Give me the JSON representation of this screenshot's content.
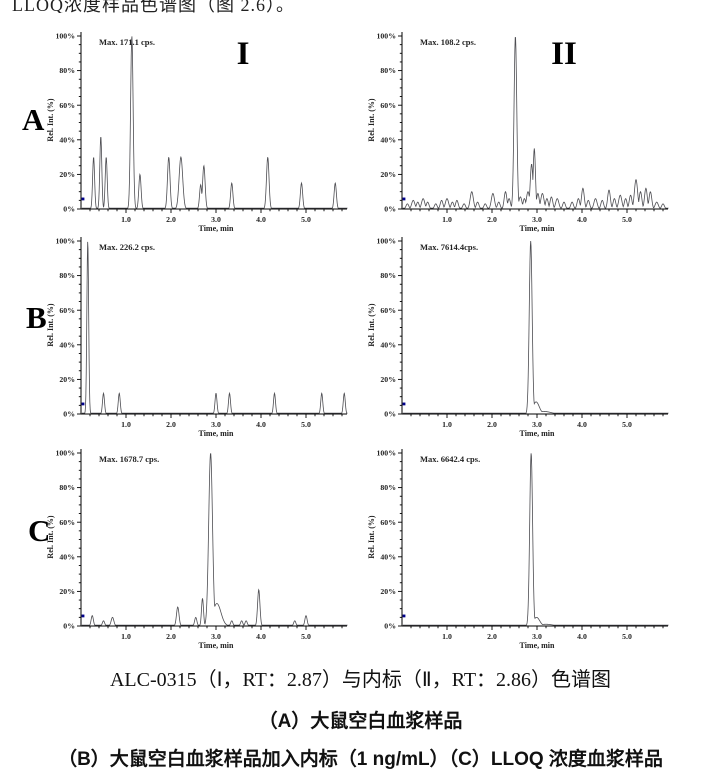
{
  "top_text": "LLOQ浓度样品色谱图（图 2.6）。",
  "captions": {
    "line1": "ALC-0315（Ⅰ，RT：2.87）与内标（Ⅱ，RT：2.86）色谱图",
    "line2": "（A）大鼠空白血浆样品",
    "line3": "（B）大鼠空白血浆样品加入内标（1 ng/mL）（C）LLOQ 浓度血浆样品"
  },
  "row_labels": {
    "a": "A",
    "b": "B",
    "c": "C"
  },
  "axis": {
    "ylabel": "Rel. Int. (%)",
    "xlabel": "Time, min",
    "y_ticks": [
      "100%",
      "80%",
      "60%",
      "40%",
      "20%",
      "0%"
    ],
    "x_ticks": [
      "1.0",
      "2.0",
      "3.0",
      "4.0",
      "5.0"
    ],
    "x_range": [
      0,
      5.93
    ],
    "y_range_pct": [
      0,
      100
    ],
    "trace_color": "#4d4d52",
    "marker_color": "#00008b",
    "grid": "off"
  },
  "chart_data": [
    {
      "id": "A-I",
      "type": "line",
      "title": "I",
      "max_label": "Max. 171.1 cps.",
      "x_unit": "min",
      "y_unit": "percent_rel_int",
      "peaks_rt_heightPct_sigma": [
        [
          0.28,
          30,
          0.022
        ],
        [
          0.44,
          42,
          0.022
        ],
        [
          0.56,
          30,
          0.022
        ],
        [
          1.13,
          100,
          0.028
        ],
        [
          1.31,
          20,
          0.025
        ],
        [
          1.95,
          30,
          0.028
        ],
        [
          2.22,
          30,
          0.04
        ],
        [
          2.66,
          14,
          0.025
        ],
        [
          2.73,
          25,
          0.028
        ],
        [
          3.35,
          15,
          0.025
        ],
        [
          4.15,
          30,
          0.028
        ],
        [
          4.9,
          15,
          0.025
        ],
        [
          5.65,
          15,
          0.025
        ]
      ]
    },
    {
      "id": "A-II",
      "type": "line",
      "title": "II",
      "max_label": "Max. 108.2 cps.",
      "x_unit": "min",
      "y_unit": "percent_rel_int",
      "peaks_rt_heightPct_sigma": [
        [
          0.12,
          3,
          0.03
        ],
        [
          0.25,
          5,
          0.035
        ],
        [
          0.35,
          4,
          0.03
        ],
        [
          0.47,
          6,
          0.035
        ],
        [
          0.57,
          4,
          0.03
        ],
        [
          0.75,
          3,
          0.03
        ],
        [
          0.88,
          5,
          0.03
        ],
        [
          1.0,
          6,
          0.035
        ],
        [
          1.12,
          4,
          0.03
        ],
        [
          1.22,
          5,
          0.03
        ],
        [
          1.38,
          3,
          0.03
        ],
        [
          1.55,
          10,
          0.035
        ],
        [
          1.68,
          4,
          0.03
        ],
        [
          1.85,
          3,
          0.03
        ],
        [
          2.02,
          9,
          0.035
        ],
        [
          2.15,
          4,
          0.03
        ],
        [
          2.3,
          10,
          0.03
        ],
        [
          2.38,
          6,
          0.03
        ],
        [
          2.52,
          100,
          0.03
        ],
        [
          2.63,
          7,
          0.035
        ],
        [
          2.72,
          6,
          0.03
        ],
        [
          2.8,
          10,
          0.035
        ],
        [
          2.88,
          26,
          0.03
        ],
        [
          2.94,
          35,
          0.025
        ],
        [
          3.02,
          9,
          0.03
        ],
        [
          3.12,
          9,
          0.035
        ],
        [
          3.22,
          6,
          0.03
        ],
        [
          3.32,
          7,
          0.03
        ],
        [
          3.45,
          6,
          0.035
        ],
        [
          3.6,
          4,
          0.03
        ],
        [
          3.78,
          4,
          0.03
        ],
        [
          3.92,
          6,
          0.03
        ],
        [
          4.02,
          12,
          0.03
        ],
        [
          4.14,
          5,
          0.03
        ],
        [
          4.3,
          6,
          0.035
        ],
        [
          4.45,
          5,
          0.03
        ],
        [
          4.6,
          11,
          0.03
        ],
        [
          4.72,
          6,
          0.03
        ],
        [
          4.85,
          8,
          0.035
        ],
        [
          4.97,
          6,
          0.03
        ],
        [
          5.08,
          8,
          0.03
        ],
        [
          5.2,
          17,
          0.035
        ],
        [
          5.3,
          10,
          0.03
        ],
        [
          5.42,
          12,
          0.03
        ],
        [
          5.52,
          10,
          0.03
        ],
        [
          5.66,
          4,
          0.035
        ],
        [
          5.8,
          3,
          0.03
        ]
      ]
    },
    {
      "id": "B-I",
      "type": "line",
      "title": "",
      "max_label": "Max. 226.2 cps.",
      "x_unit": "min",
      "y_unit": "percent_rel_int",
      "peaks_rt_heightPct_sigma": [
        [
          0.15,
          100,
          0.02
        ],
        [
          0.5,
          12,
          0.022
        ],
        [
          0.85,
          12,
          0.022
        ],
        [
          3.0,
          12,
          0.022
        ],
        [
          3.3,
          12,
          0.022
        ],
        [
          4.3,
          12,
          0.022
        ],
        [
          5.35,
          12,
          0.022
        ],
        [
          5.85,
          12,
          0.022
        ]
      ]
    },
    {
      "id": "B-II",
      "type": "line",
      "title": "",
      "max_label": "Max. 7614.4cps.",
      "x_unit": "min",
      "y_unit": "percent_rel_int",
      "peaks_rt_heightPct_sigma": [
        [
          2.86,
          100,
          0.032
        ],
        [
          2.98,
          7,
          0.07
        ],
        [
          3.15,
          1.5,
          0.15
        ]
      ]
    },
    {
      "id": "C-I",
      "type": "line",
      "title": "",
      "max_label": "Max. 1678.7 cps.",
      "x_unit": "min",
      "y_unit": "percent_rel_int",
      "peaks_rt_heightPct_sigma": [
        [
          0.25,
          6,
          0.025
        ],
        [
          0.5,
          3,
          0.025
        ],
        [
          0.7,
          5,
          0.03
        ],
        [
          2.15,
          11,
          0.028
        ],
        [
          2.55,
          5,
          0.025
        ],
        [
          2.7,
          16,
          0.022
        ],
        [
          2.88,
          100,
          0.042
        ],
        [
          3.02,
          13,
          0.09
        ],
        [
          3.35,
          3,
          0.025
        ],
        [
          3.57,
          3,
          0.025
        ],
        [
          3.67,
          3,
          0.025
        ],
        [
          3.95,
          21,
          0.026
        ],
        [
          4.75,
          3,
          0.025
        ],
        [
          5.0,
          6,
          0.025
        ]
      ]
    },
    {
      "id": "C-II",
      "type": "line",
      "title": "",
      "max_label": "Max. 6642.4 cps.",
      "x_unit": "min",
      "y_unit": "percent_rel_int",
      "peaks_rt_heightPct_sigma": [
        [
          2.87,
          100,
          0.032
        ],
        [
          2.99,
          5,
          0.07
        ],
        [
          3.2,
          1,
          0.15
        ]
      ]
    }
  ]
}
